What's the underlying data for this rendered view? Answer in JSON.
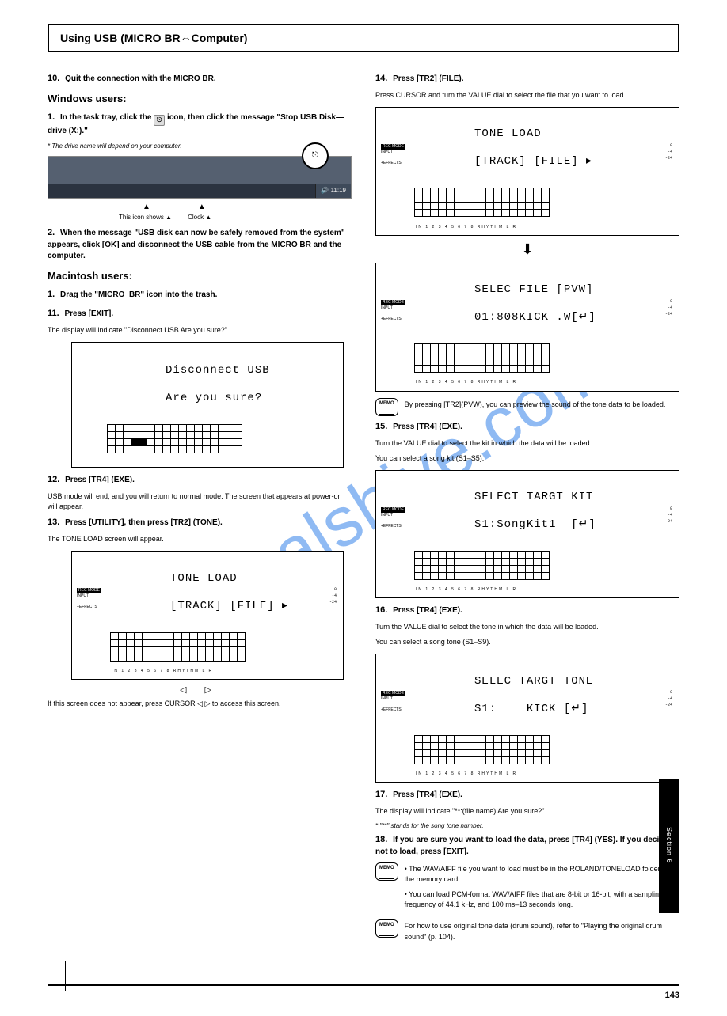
{
  "title": "Using USB (MICRO BR⇔Computer)",
  "left": {
    "step10_num": "10.",
    "step10": "Quit the connection with the MICRO BR.",
    "win_h": "Windows users:",
    "win_1a_pre": "In the task tray, click the ",
    "win_1a_post": " icon, then click the message \"Stop USB Disk—drive (X:).\"",
    "win_1_star": "*  The drive name will depend on your computer.",
    "taskbar_time": "11:19",
    "taskbar_note1": "This icon shows ▲",
    "taskbar_note2": "Clock ▲",
    "win_2": "When the message \"USB disk can now be safely removed from the system\" appears, click [OK] and disconnect the USB cable from the MICRO BR and the computer.",
    "mac_h": "Macintosh users:",
    "mac_1": "Drag the \"MICRO_BR\" icon into the trash.",
    "step11_num": "11.",
    "step11": "Press [EXIT].",
    "step11_sub": "The display will indicate \"Disconnect USB Are you sure?\"",
    "lcd_disconnect_l1": "Disconnect USB",
    "lcd_disconnect_l2": "Are you sure?",
    "step12_num": "12.",
    "step12": "Press [TR4] (EXE).",
    "step12_sub": "USB mode will end, and you will return to normal mode. The screen that appears at power-on will appear.",
    "step13_num": "13.",
    "step13": "Press [UTILITY], then press [TR2] (TONE).",
    "step13_sub": "The TONE LOAD screen will appear.",
    "lcd_toneload_l1": "TONE LOAD",
    "lcd_toneload_l2": "[TRACK] [FILE] ",
    "cursor_note": "If this screen does not appear, press CURSOR ◁   ▷ to access this screen.",
    "grid_disc_fill": [
      [
        2,
        3
      ],
      [
        2,
        4
      ]
    ]
  },
  "right": {
    "step14_num": "14.",
    "step14": "Press [TR2] (FILE).",
    "step14_sub": "Press CURSOR and turn the VALUE dial to select the file that you want to load.",
    "lcdA_l1": "TONE LOAD",
    "lcdA_l2": "[TRACK] [FILE] ",
    "lcdB_l1": "SELEC FILE [PVW]",
    "lcdB_l2": "01:808KICK .W[↵]",
    "memo1": "By pressing [TR2](PVW), you can preview the sound of the tone data to be loaded.",
    "step15_num": "15.",
    "step15": "Press [TR4] (EXE).",
    "step15_sub_a": "Turn the VALUE dial to select the kit in which the data will be loaded.",
    "step15_sub_b": "You can select a song kit (S1–S5).",
    "lcdC_l1": "SELECT TARGT KIT",
    "lcdC_l2": "S1:SongKit1  [↵]",
    "step16_num": "16.",
    "step16": "Press [TR4] (EXE).",
    "step16_sub_a": "Turn the VALUE dial to select the tone in which the data will be loaded.",
    "step16_sub_b": "You can select a song tone (S1–S9).",
    "lcdD_l1": "SELEC TARGT TONE",
    "lcdD_l2": "S1:    KICK [↵]",
    "step17_num": "17.",
    "step17": "Press [TR4] (EXE).",
    "step17_sub": "The display will indicate \"**:(file name) Are you sure?\"",
    "note1": "*  \"**\" stands for the song tone number.",
    "step18_num": "18.",
    "step18": "If you are sure you want to load the data, press [TR4] (YES). If you decide not to load, press [EXIT].",
    "memo2": "• The WAV/AIFF file you want to load must be in the ROLAND/TONELOAD folder on the memory card.",
    "memo2b": "• You can load PCM-format WAV/AIFF files that are 8-bit or 16-bit, with a sampling frequency of 44.1 kHz, and 100 ms–13 seconds long.",
    "memo3": "For how to use original tone data (drum sound), refer to \"Playing the original drum sound\" (p. 104).",
    "side_tab": "Section 6",
    "page_num": "143"
  },
  "lcd_common": {
    "recmode": "REC MODE",
    "input": "INPUT",
    "effects": "+EFFECTS",
    "axis": "IN   1  2  3  4  5  6  7  8  RHYTHM    L   R",
    "scale": [
      "0",
      "-4",
      "-24"
    ],
    "grid_rows": 4,
    "grid_cols": 17
  },
  "memo_label": "MEMO"
}
